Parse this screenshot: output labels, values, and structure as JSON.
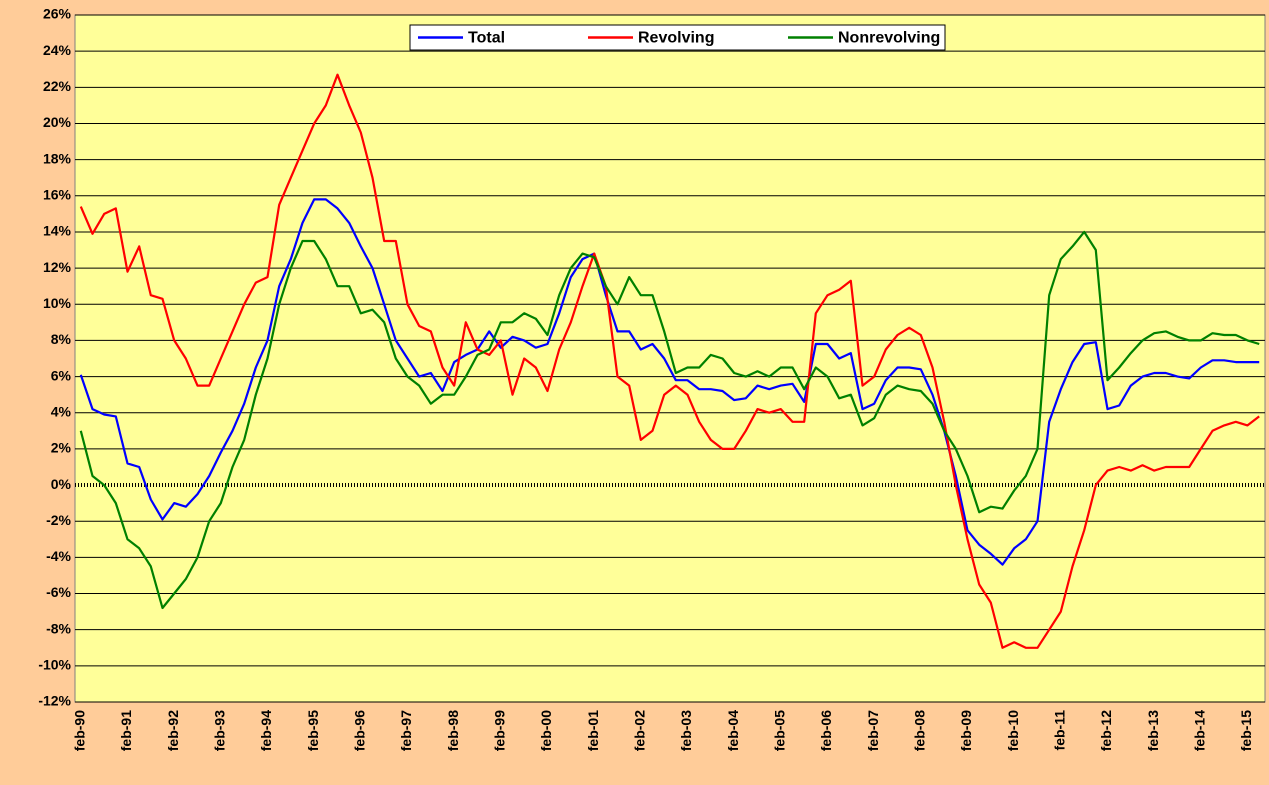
{
  "chart_data": {
    "type": "line",
    "categories": [
      "feb-90",
      null,
      null,
      null,
      "feb-91",
      null,
      null,
      null,
      "feb-92",
      null,
      null,
      null,
      "feb-93",
      null,
      null,
      null,
      "feb-94",
      null,
      null,
      null,
      "feb-95",
      null,
      null,
      null,
      "feb-96",
      null,
      null,
      null,
      "feb-97",
      null,
      null,
      null,
      "feb-98",
      null,
      null,
      null,
      "feb-99",
      null,
      null,
      null,
      "feb-00",
      null,
      null,
      null,
      "feb-01",
      null,
      null,
      null,
      "feb-02",
      null,
      null,
      null,
      "feb-03",
      null,
      null,
      null,
      "feb-04",
      null,
      null,
      null,
      "feb-05",
      null,
      null,
      null,
      "feb-06",
      null,
      null,
      null,
      "feb-07",
      null,
      null,
      null,
      "feb-08",
      null,
      null,
      null,
      "feb-09",
      null,
      null,
      null,
      "feb-10",
      null,
      null,
      null,
      "feb-11",
      null,
      null,
      null,
      "feb-12",
      null,
      null,
      null,
      "feb-13",
      null,
      null,
      null,
      "feb-14",
      null,
      null,
      null,
      "feb-15",
      null
    ],
    "series": [
      {
        "name": "Total",
        "color": "#0000ff",
        "values": [
          6.1,
          4.2,
          3.9,
          3.8,
          1.2,
          1.0,
          -0.8,
          -1.9,
          -1.0,
          -1.2,
          -0.5,
          0.5,
          1.8,
          3.0,
          4.5,
          6.5,
          8.0,
          11.0,
          12.5,
          14.5,
          15.8,
          15.8,
          15.3,
          14.5,
          13.2,
          12.0,
          10.0,
          8.0,
          7.0,
          6.0,
          6.2,
          5.2,
          6.8,
          7.2,
          7.5,
          8.5,
          7.6,
          8.2,
          8.0,
          7.6,
          7.8,
          9.5,
          11.5,
          12.5,
          12.8,
          10.5,
          8.5,
          8.5,
          7.5,
          7.8,
          7.0,
          5.8,
          5.8,
          5.3,
          5.3,
          5.2,
          4.7,
          4.8,
          5.5,
          5.3,
          5.5,
          5.6,
          4.6,
          7.8,
          7.8,
          7.0,
          7.3,
          4.2,
          4.5,
          5.8,
          6.5,
          6.5,
          6.4,
          5.0,
          3.0,
          0.5,
          -2.5,
          -3.3,
          -3.8,
          -4.4,
          -3.5,
          -3.0,
          -2.0,
          3.5,
          5.3,
          6.8,
          7.8,
          7.9,
          4.2,
          4.4,
          5.5,
          6.0,
          6.2,
          6.2,
          6.0,
          5.9,
          6.5,
          6.9,
          6.9,
          6.8,
          6.8,
          6.8
        ]
      },
      {
        "name": "Revolving",
        "color": "#ff0000",
        "values": [
          15.4,
          13.9,
          15.0,
          15.3,
          11.8,
          13.2,
          10.5,
          10.3,
          8.0,
          7.0,
          5.5,
          5.5,
          7.0,
          8.5,
          10.0,
          11.2,
          11.5,
          15.5,
          17.0,
          18.5,
          20.0,
          21.0,
          22.7,
          21.0,
          19.5,
          17.0,
          13.5,
          13.5,
          10.0,
          8.8,
          8.5,
          6.5,
          5.5,
          9.0,
          7.5,
          7.2,
          8.0,
          5.0,
          7.0,
          6.5,
          5.2,
          7.5,
          9.0,
          11.0,
          12.8,
          11.0,
          6.0,
          5.5,
          2.5,
          3.0,
          5.0,
          5.5,
          5.0,
          3.5,
          2.5,
          2.0,
          2.0,
          3.0,
          4.2,
          4.0,
          4.2,
          3.5,
          3.5,
          9.5,
          10.5,
          10.8,
          11.3,
          5.5,
          6.0,
          7.5,
          8.3,
          8.7,
          8.3,
          6.5,
          3.5,
          0.0,
          -3.0,
          -5.5,
          -6.5,
          -9.0,
          -8.7,
          -9.0,
          -9.0,
          -8.0,
          -7.0,
          -4.5,
          -2.5,
          0.0,
          0.8,
          1.0,
          0.8,
          1.1,
          0.8,
          1.0,
          1.0,
          1.0,
          2.0,
          3.0,
          3.3,
          3.5,
          3.3,
          3.8
        ]
      },
      {
        "name": "Nonrevolving",
        "color": "#008000",
        "values": [
          3.0,
          0.5,
          0.0,
          -1.0,
          -3.0,
          -3.5,
          -4.5,
          -6.8,
          -6.0,
          -5.2,
          -4.0,
          -2.0,
          -1.0,
          1.0,
          2.5,
          5.0,
          7.0,
          10.0,
          12.0,
          13.5,
          13.5,
          12.5,
          11.0,
          11.0,
          9.5,
          9.7,
          9.0,
          7.0,
          6.0,
          5.5,
          4.5,
          5.0,
          5.0,
          6.0,
          7.2,
          7.5,
          9.0,
          9.0,
          9.5,
          9.2,
          8.3,
          10.5,
          12.0,
          12.8,
          12.6,
          11.0,
          10.0,
          11.5,
          10.5,
          10.5,
          8.5,
          6.2,
          6.5,
          6.5,
          7.2,
          7.0,
          6.2,
          6.0,
          6.3,
          6.0,
          6.5,
          6.5,
          5.3,
          6.5,
          6.0,
          4.8,
          5.0,
          3.3,
          3.7,
          5.0,
          5.5,
          5.3,
          5.2,
          4.5,
          3.0,
          2.0,
          0.5,
          -1.5,
          -1.2,
          -1.3,
          -0.3,
          0.5,
          2.0,
          10.5,
          12.5,
          13.2,
          14.0,
          13.0,
          5.8,
          6.5,
          7.3,
          8.0,
          8.4,
          8.5,
          8.2,
          8.0,
          8.0,
          8.4,
          8.3,
          8.3,
          8.0,
          7.8
        ]
      }
    ],
    "ylim": [
      -12,
      26
    ],
    "yticks": [
      {
        "value": -12,
        "label": "-12%"
      },
      {
        "value": -10,
        "label": "-10%"
      },
      {
        "value": -8,
        "label": "-8%"
      },
      {
        "value": -6,
        "label": "-6%"
      },
      {
        "value": -4,
        "label": "-4%"
      },
      {
        "value": -2,
        "label": "-2%"
      },
      {
        "value": 0,
        "label": "0%"
      },
      {
        "value": 2,
        "label": "2%"
      },
      {
        "value": 4,
        "label": "4%"
      },
      {
        "value": 6,
        "label": "6%"
      },
      {
        "value": 8,
        "label": "8%"
      },
      {
        "value": 10,
        "label": "10%"
      },
      {
        "value": 12,
        "label": "12%"
      },
      {
        "value": 14,
        "label": "14%"
      },
      {
        "value": 16,
        "label": "16%"
      },
      {
        "value": 18,
        "label": "18%"
      },
      {
        "value": 20,
        "label": "20%"
      },
      {
        "value": 22,
        "label": "22%"
      },
      {
        "value": 24,
        "label": "24%"
      },
      {
        "value": 26,
        "label": "26%"
      }
    ],
    "grid": true,
    "legend": "top"
  }
}
